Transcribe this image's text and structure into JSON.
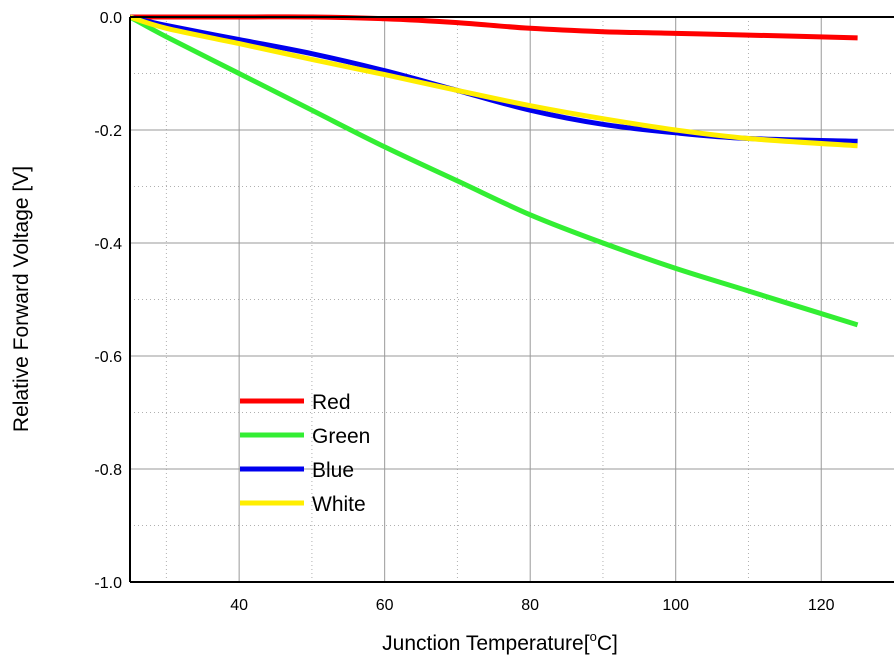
{
  "chart_data": {
    "type": "line",
    "title": "",
    "xlabel": "Junction Temperature[",
    "xlabel_sup": "o",
    "xlabel_unit": "C]",
    "ylabel": "Relative Forward Voltage [V]",
    "xlim": [
      25,
      130
    ],
    "ylim": [
      -1.0,
      0.0
    ],
    "x_ticks": [
      40,
      60,
      80,
      100,
      120
    ],
    "x_tick_labels": [
      "40",
      "60",
      "80",
      "100",
      "120"
    ],
    "y_ticks": [
      0.0,
      -0.2,
      -0.4,
      -0.6,
      -0.8,
      -1.0
    ],
    "y_tick_labels": [
      "0.0",
      "-0.2",
      "-0.4",
      "-0.6",
      "-0.8",
      "-1.0"
    ],
    "x_minor_ticks": [
      30,
      50,
      70,
      90,
      110
    ],
    "y_minor_ticks": [
      -0.1,
      -0.3,
      -0.5,
      -0.7,
      -0.9
    ],
    "grid": true,
    "legend_position": "lower-left",
    "series": [
      {
        "name": "Red",
        "color": "#ff0000",
        "x": [
          25,
          40,
          50,
          60,
          70,
          80,
          90,
          100,
          110,
          125
        ],
        "y": [
          0.0,
          0.0,
          0.0,
          -0.003,
          -0.01,
          -0.02,
          -0.026,
          -0.029,
          -0.032,
          -0.037
        ]
      },
      {
        "name": "Green",
        "color": "#33ee33",
        "x": [
          25,
          30,
          40,
          50,
          60,
          70,
          80,
          90,
          100,
          110,
          125
        ],
        "y": [
          0.0,
          -0.035,
          -0.1,
          -0.165,
          -0.23,
          -0.29,
          -0.35,
          -0.4,
          -0.445,
          -0.485,
          -0.545
        ]
      },
      {
        "name": "Blue",
        "color": "#0000ee",
        "x": [
          25,
          30,
          40,
          50,
          60,
          70,
          80,
          90,
          100,
          110,
          125
        ],
        "y": [
          0.0,
          -0.015,
          -0.04,
          -0.065,
          -0.095,
          -0.13,
          -0.165,
          -0.19,
          -0.205,
          -0.215,
          -0.22
        ]
      },
      {
        "name": "White",
        "color": "#ffee00",
        "x": [
          25,
          30,
          40,
          50,
          60,
          70,
          80,
          90,
          100,
          110,
          125
        ],
        "y": [
          0.0,
          -0.02,
          -0.047,
          -0.075,
          -0.102,
          -0.13,
          -0.157,
          -0.18,
          -0.2,
          -0.215,
          -0.228
        ]
      }
    ]
  }
}
